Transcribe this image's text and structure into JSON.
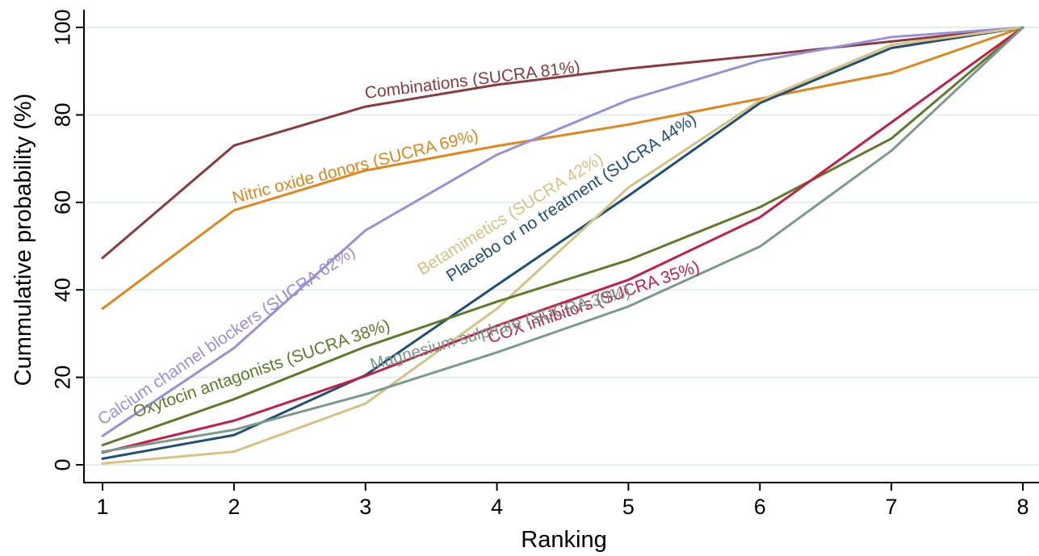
{
  "chart_data": {
    "type": "line",
    "xlabel": "Ranking",
    "ylabel": "Cummulative probability (%)",
    "x": [
      1,
      2,
      3,
      4,
      5,
      6,
      7,
      8
    ],
    "xlim": [
      1,
      8
    ],
    "ylim": [
      0,
      100
    ],
    "xticks": [
      "1",
      "2",
      "3",
      "4",
      "5",
      "6",
      "7",
      "8"
    ],
    "yticks": [
      "0",
      "20",
      "40",
      "60",
      "80",
      "100"
    ],
    "grid": true,
    "legend": "none (labels placed along lines)",
    "series": [
      {
        "name": "Combinations (SUCRA 81%)",
        "color": "#8b3a3f",
        "values": [
          47.3,
          73.0,
          81.9,
          86.9,
          90.6,
          93.6,
          96.8,
          100
        ]
      },
      {
        "name": "Nitric oxide donors (SUCRA 69%)",
        "color": "#e0861c",
        "values": [
          35.7,
          58.2,
          67.3,
          72.9,
          77.8,
          83.7,
          89.6,
          100
        ]
      },
      {
        "name": "Calcium channel blockers (SUCRA 62%)",
        "color": "#9a90d8",
        "values": [
          6.6,
          26.7,
          53.6,
          70.9,
          83.4,
          92.4,
          97.8,
          100
        ]
      },
      {
        "name": "Placebo or no treatment (SUCRA 44%)",
        "color": "#1f4e79",
        "values": [
          1.4,
          6.8,
          20.5,
          41.1,
          61.5,
          82.7,
          95.3,
          100
        ]
      },
      {
        "name": "Betamimetics (SUCRA 42%)",
        "color": "#d4c382",
        "values": [
          0.3,
          3.0,
          14.0,
          35.7,
          63.4,
          83.3,
          96.0,
          100
        ]
      },
      {
        "name": "Oxytocin antagonists (SUCRA 38%)",
        "color": "#5e7a2a",
        "values": [
          4.5,
          15.0,
          27.0,
          37.3,
          46.8,
          58.9,
          74.6,
          100
        ]
      },
      {
        "name": "COX inhibitors (SUCRA 35%)",
        "color": "#c41e48",
        "values": [
          2.8,
          10.1,
          20.3,
          31.8,
          42.3,
          56.6,
          78.3,
          100
        ]
      },
      {
        "name": "Magnesium sulphate (SUCRA 30%)",
        "color": "#7a9a8c",
        "values": [
          3.0,
          8.0,
          16.1,
          25.7,
          36.2,
          49.9,
          71.8,
          100
        ]
      }
    ]
  }
}
